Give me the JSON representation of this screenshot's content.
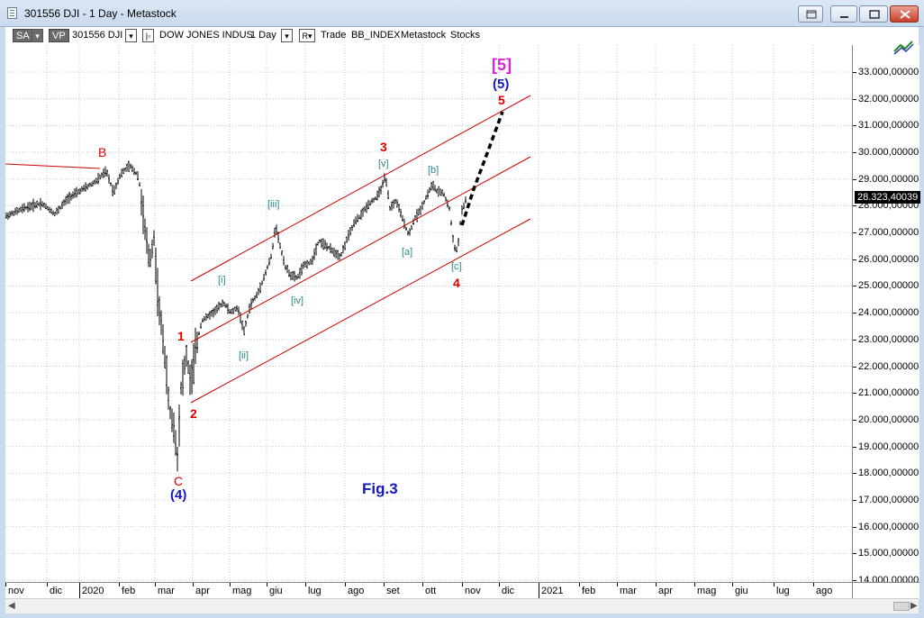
{
  "window": {
    "title": "301556 DJI - 1 Day - Metastock"
  },
  "toolbar": {
    "sa_label": "SA",
    "vp_label": "VP",
    "symbol": "301556 DJI",
    "name": "DOW JONES INDUS",
    "period": "1 Day",
    "r_label": "R",
    "t1": "Trade",
    "t2": "BB_INDEX",
    "t3": "Metastock",
    "t4": "Stocks"
  },
  "price_axis": {
    "labels": [
      "33.000,00000",
      "32.000,00000",
      "31.000,00000",
      "30.000,00000",
      "29.000,00000",
      "28.000,00000",
      "27.000,00000",
      "26.000,00000",
      "25.000,00000",
      "24.000,00000",
      "23.000,00000",
      "22.000,00000",
      "21.000,00000",
      "20.000,00000",
      "19.000,00000",
      "18.000,00000",
      "17.000,00000",
      "16.000,00000",
      "15.000,00000",
      "14.000,00000"
    ],
    "last_price": "28.323,40039"
  },
  "date_axis": {
    "labels": [
      "nov",
      "dic",
      "2020",
      "feb",
      "mar",
      "apr",
      "mag",
      "giu",
      "lug",
      "ago",
      "set",
      "ott",
      "nov",
      "dic",
      "2021",
      "feb",
      "mar",
      "apr",
      "mag",
      "giu",
      "lug",
      "ago"
    ]
  },
  "annotations": {
    "fig_label": "Fig.3",
    "B": "B",
    "C": "C",
    "wave_4_blue": "(4)",
    "wave_5_blue": "(5)",
    "wave_5_magenta": "[5]",
    "w1": "1",
    "w2": "2",
    "w3": "3",
    "w4": "4",
    "w5": "5",
    "i": "[i]",
    "ii": "[ii]",
    "iii": "[iii]",
    "iv": "[iv]",
    "v": "[v]",
    "a": "[a]",
    "b": "[b]",
    "c": "[c]"
  },
  "chart_data": {
    "type": "ohlc",
    "symbol": "301556 DJI",
    "ylim": [
      14000,
      34000
    ],
    "x": [
      "2019-11",
      "2019-12",
      "2020-01",
      "2020-02",
      "2020-03",
      "2020-04",
      "2020-05",
      "2020-06",
      "2020-07",
      "2020-08",
      "2020-09",
      "2020-10",
      "2020-11"
    ],
    "close_monthly_approx": [
      27900,
      28500,
      28700,
      25400,
      21900,
      24300,
      25400,
      25800,
      26400,
      28400,
      27800,
      26500,
      28323
    ],
    "last_close": 28323.40039,
    "key_points": [
      {
        "label": "B",
        "date": "2020-02",
        "value": 29500
      },
      {
        "label": "C",
        "date": "2020-03",
        "value": 18200
      },
      {
        "label": "1",
        "date": "2020-03",
        "value": 23200
      },
      {
        "label": "2",
        "date": "2020-04",
        "value": 20700
      },
      {
        "label": "[iii]",
        "date": "2020-06",
        "value": 27500
      },
      {
        "label": "[iv]",
        "date": "2020-06",
        "value": 25000
      },
      {
        "label": "3",
        "date": "2020-09",
        "value": 29200
      },
      {
        "label": "[a]",
        "date": "2020-09",
        "value": 26500
      },
      {
        "label": "[b]",
        "date": "2020-10",
        "value": 28900
      },
      {
        "label": "4",
        "date": "2020-10",
        "value": 26100
      },
      {
        "label": "5",
        "date": "2020-11",
        "value": 31500
      }
    ],
    "colors": {
      "bars": "#000000",
      "channel": "#cc0000",
      "projection": "#000000",
      "wave_red": "#dd0000",
      "wave_blue": "#1818c0",
      "wave_teal": "#2a8a8a",
      "wave_magenta": "#e020e0"
    }
  }
}
